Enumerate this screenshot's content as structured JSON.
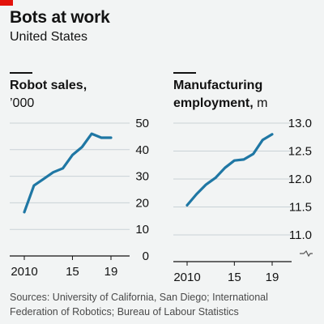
{
  "header": {
    "title": "Bots at work",
    "subtitle": "United States"
  },
  "source": "Sources: University of California, San Diego; International Federation of Robotics; Bureau of Labour Statistics",
  "colors": {
    "line": "#1f77a4",
    "grid": "#c9d2d6",
    "accent": "#e3120b",
    "background": "#f2f4f4"
  },
  "chart_data": [
    {
      "type": "line",
      "title_line1": "Robot sales,",
      "title_line2": "’000",
      "x": [
        2010,
        2011,
        2012,
        2013,
        2014,
        2015,
        2016,
        2017,
        2018,
        2019
      ],
      "values": [
        16.5,
        26.5,
        29,
        31.5,
        33,
        38,
        41,
        46,
        44.5,
        44.5
      ],
      "ylim": [
        0,
        50
      ],
      "yticks": [
        0,
        10,
        20,
        30,
        40,
        50
      ],
      "xticks": [
        {
          "value": 2010,
          "label": "2010"
        },
        {
          "value": 2015,
          "label": "15"
        },
        {
          "value": 2019,
          "label": "19"
        }
      ],
      "grid": true
    },
    {
      "type": "line",
      "title_line1": "Manufacturing",
      "title_line2_bold": "employment,",
      "title_line2_unit": " m",
      "x": [
        2010,
        2011,
        2012,
        2013,
        2014,
        2015,
        2016,
        2017,
        2018,
        2019
      ],
      "values": [
        11.53,
        11.73,
        11.9,
        12.02,
        12.2,
        12.33,
        12.35,
        12.45,
        12.7,
        12.8
      ],
      "ylim": [
        11.0,
        13.0
      ],
      "yticks": [
        11.0,
        11.5,
        12.0,
        12.5,
        13.0
      ],
      "ytick_labels": [
        "11.0",
        "11.5",
        "12.0",
        "12.5",
        "13.0"
      ],
      "xticks": [
        {
          "value": 2010,
          "label": "2010"
        },
        {
          "value": 2015,
          "label": "15"
        },
        {
          "value": 2019,
          "label": "19"
        }
      ],
      "axis_break": true,
      "grid": true
    }
  ]
}
